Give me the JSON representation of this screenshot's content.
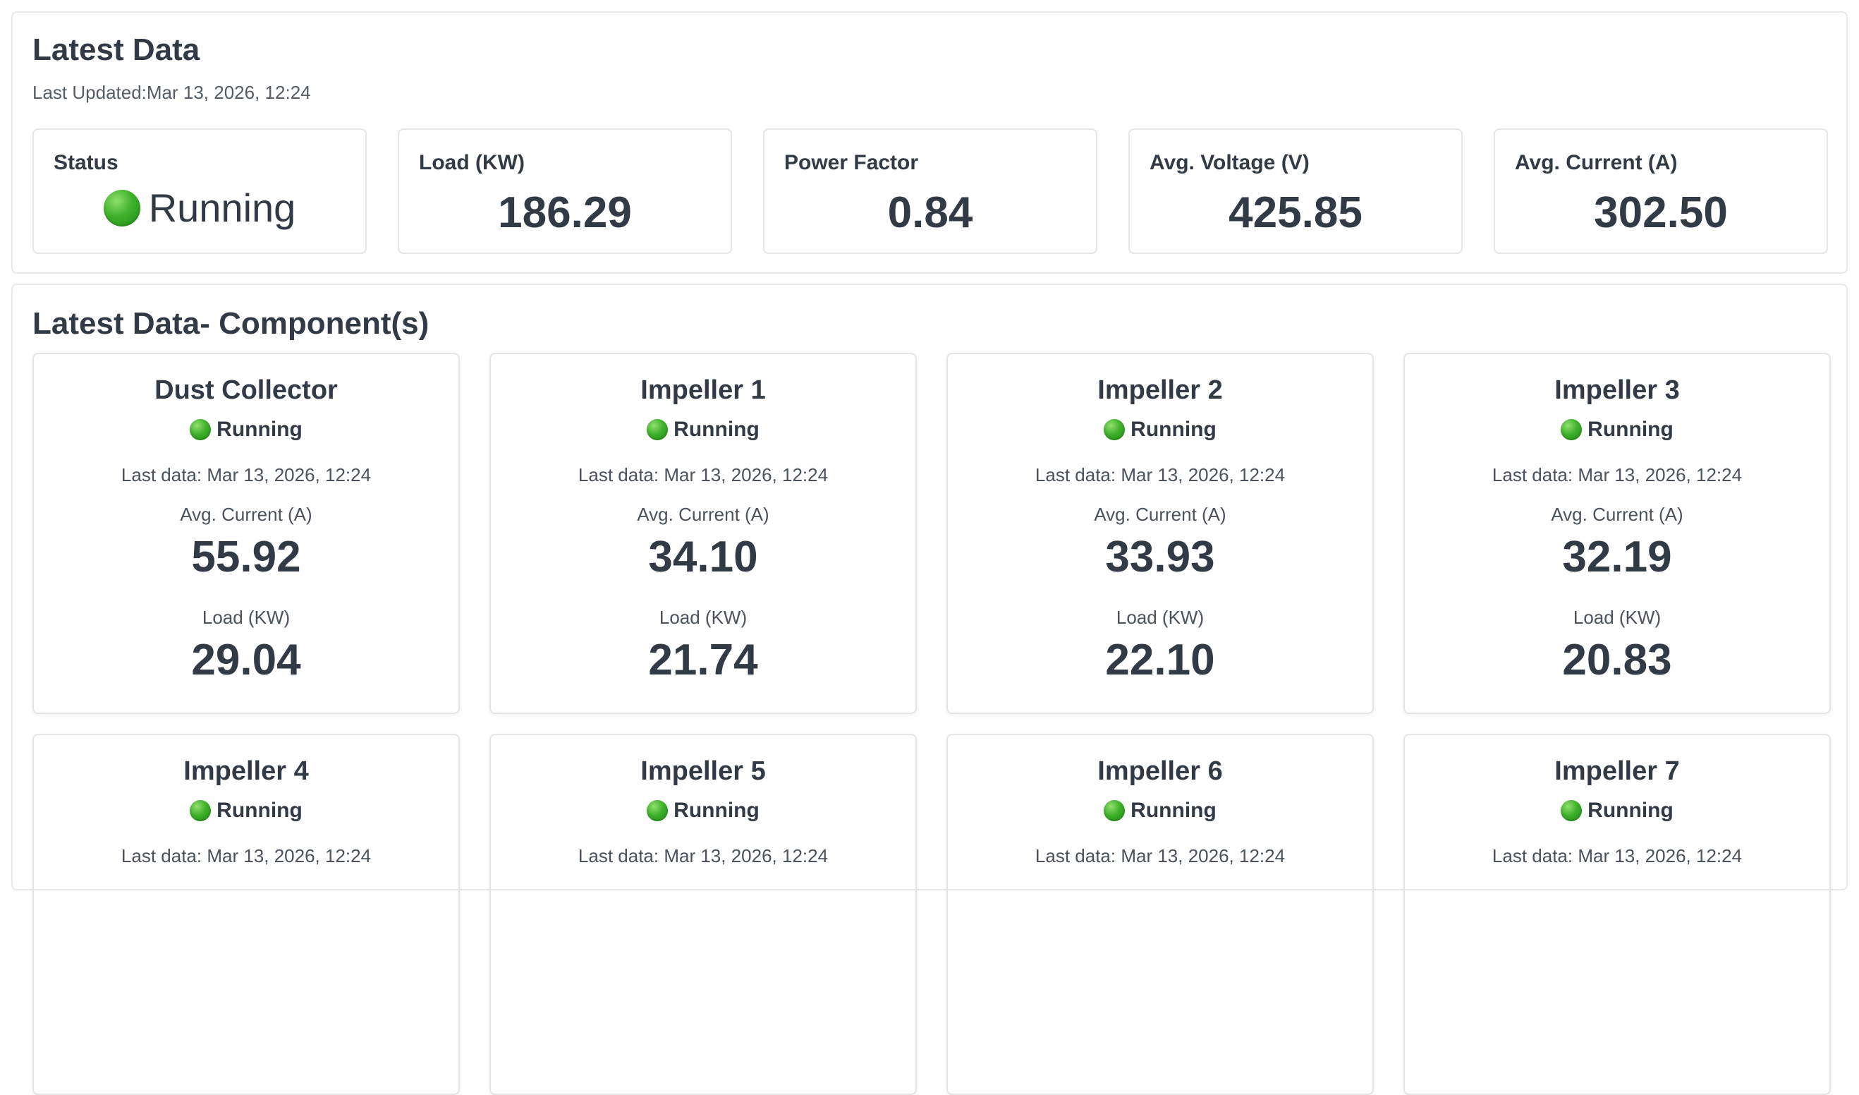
{
  "summary": {
    "title": "Latest Data",
    "updated_label": "Last Updated:",
    "updated_value": "Mar 13, 2026, 12:24",
    "kpis": [
      {
        "label": "Status",
        "value": "Running",
        "status_icon": "green-circle-icon"
      },
      {
        "label": "Load (KW)",
        "value": "186.29"
      },
      {
        "label": "Power Factor",
        "value": "0.84"
      },
      {
        "label": "Avg. Voltage (V)",
        "value": "425.85"
      },
      {
        "label": "Avg. Current (A)",
        "value": "302.50"
      }
    ]
  },
  "components": {
    "title": "Latest Data- Component(s)",
    "items": [
      {
        "name": "Dust Collector",
        "status": "Running",
        "last_data": "Last data: Mar 13, 2026, 12:24",
        "current_label": "Avg. Current (A)",
        "current": "55.92",
        "load_label": "Load (KW)",
        "load": "29.04"
      },
      {
        "name": "Impeller 1",
        "status": "Running",
        "last_data": "Last data: Mar 13, 2026, 12:24",
        "current_label": "Avg. Current (A)",
        "current": "34.10",
        "load_label": "Load (KW)",
        "load": "21.74"
      },
      {
        "name": "Impeller 2",
        "status": "Running",
        "last_data": "Last data: Mar 13, 2026, 12:24",
        "current_label": "Avg. Current (A)",
        "current": "33.93",
        "load_label": "Load (KW)",
        "load": "22.10"
      },
      {
        "name": "Impeller 3",
        "status": "Running",
        "last_data": "Last data: Mar 13, 2026, 12:24",
        "current_label": "Avg. Current (A)",
        "current": "32.19",
        "load_label": "Load (KW)",
        "load": "20.83"
      },
      {
        "name": "Impeller 4",
        "status": "Running",
        "last_data": "Last data: Mar 13, 2026, 12:24"
      },
      {
        "name": "Impeller 5",
        "status": "Running",
        "last_data": "Last data: Mar 13, 2026, 12:24"
      },
      {
        "name": "Impeller 6",
        "status": "Running",
        "last_data": "Last data: Mar 13, 2026, 12:24"
      },
      {
        "name": "Impeller 7",
        "status": "Running",
        "last_data": "Last data: Mar 13, 2026, 12:24"
      }
    ]
  },
  "colors": {
    "text": "#323a45",
    "border": "#e3e5e8",
    "status_green": "#3fb12a"
  }
}
